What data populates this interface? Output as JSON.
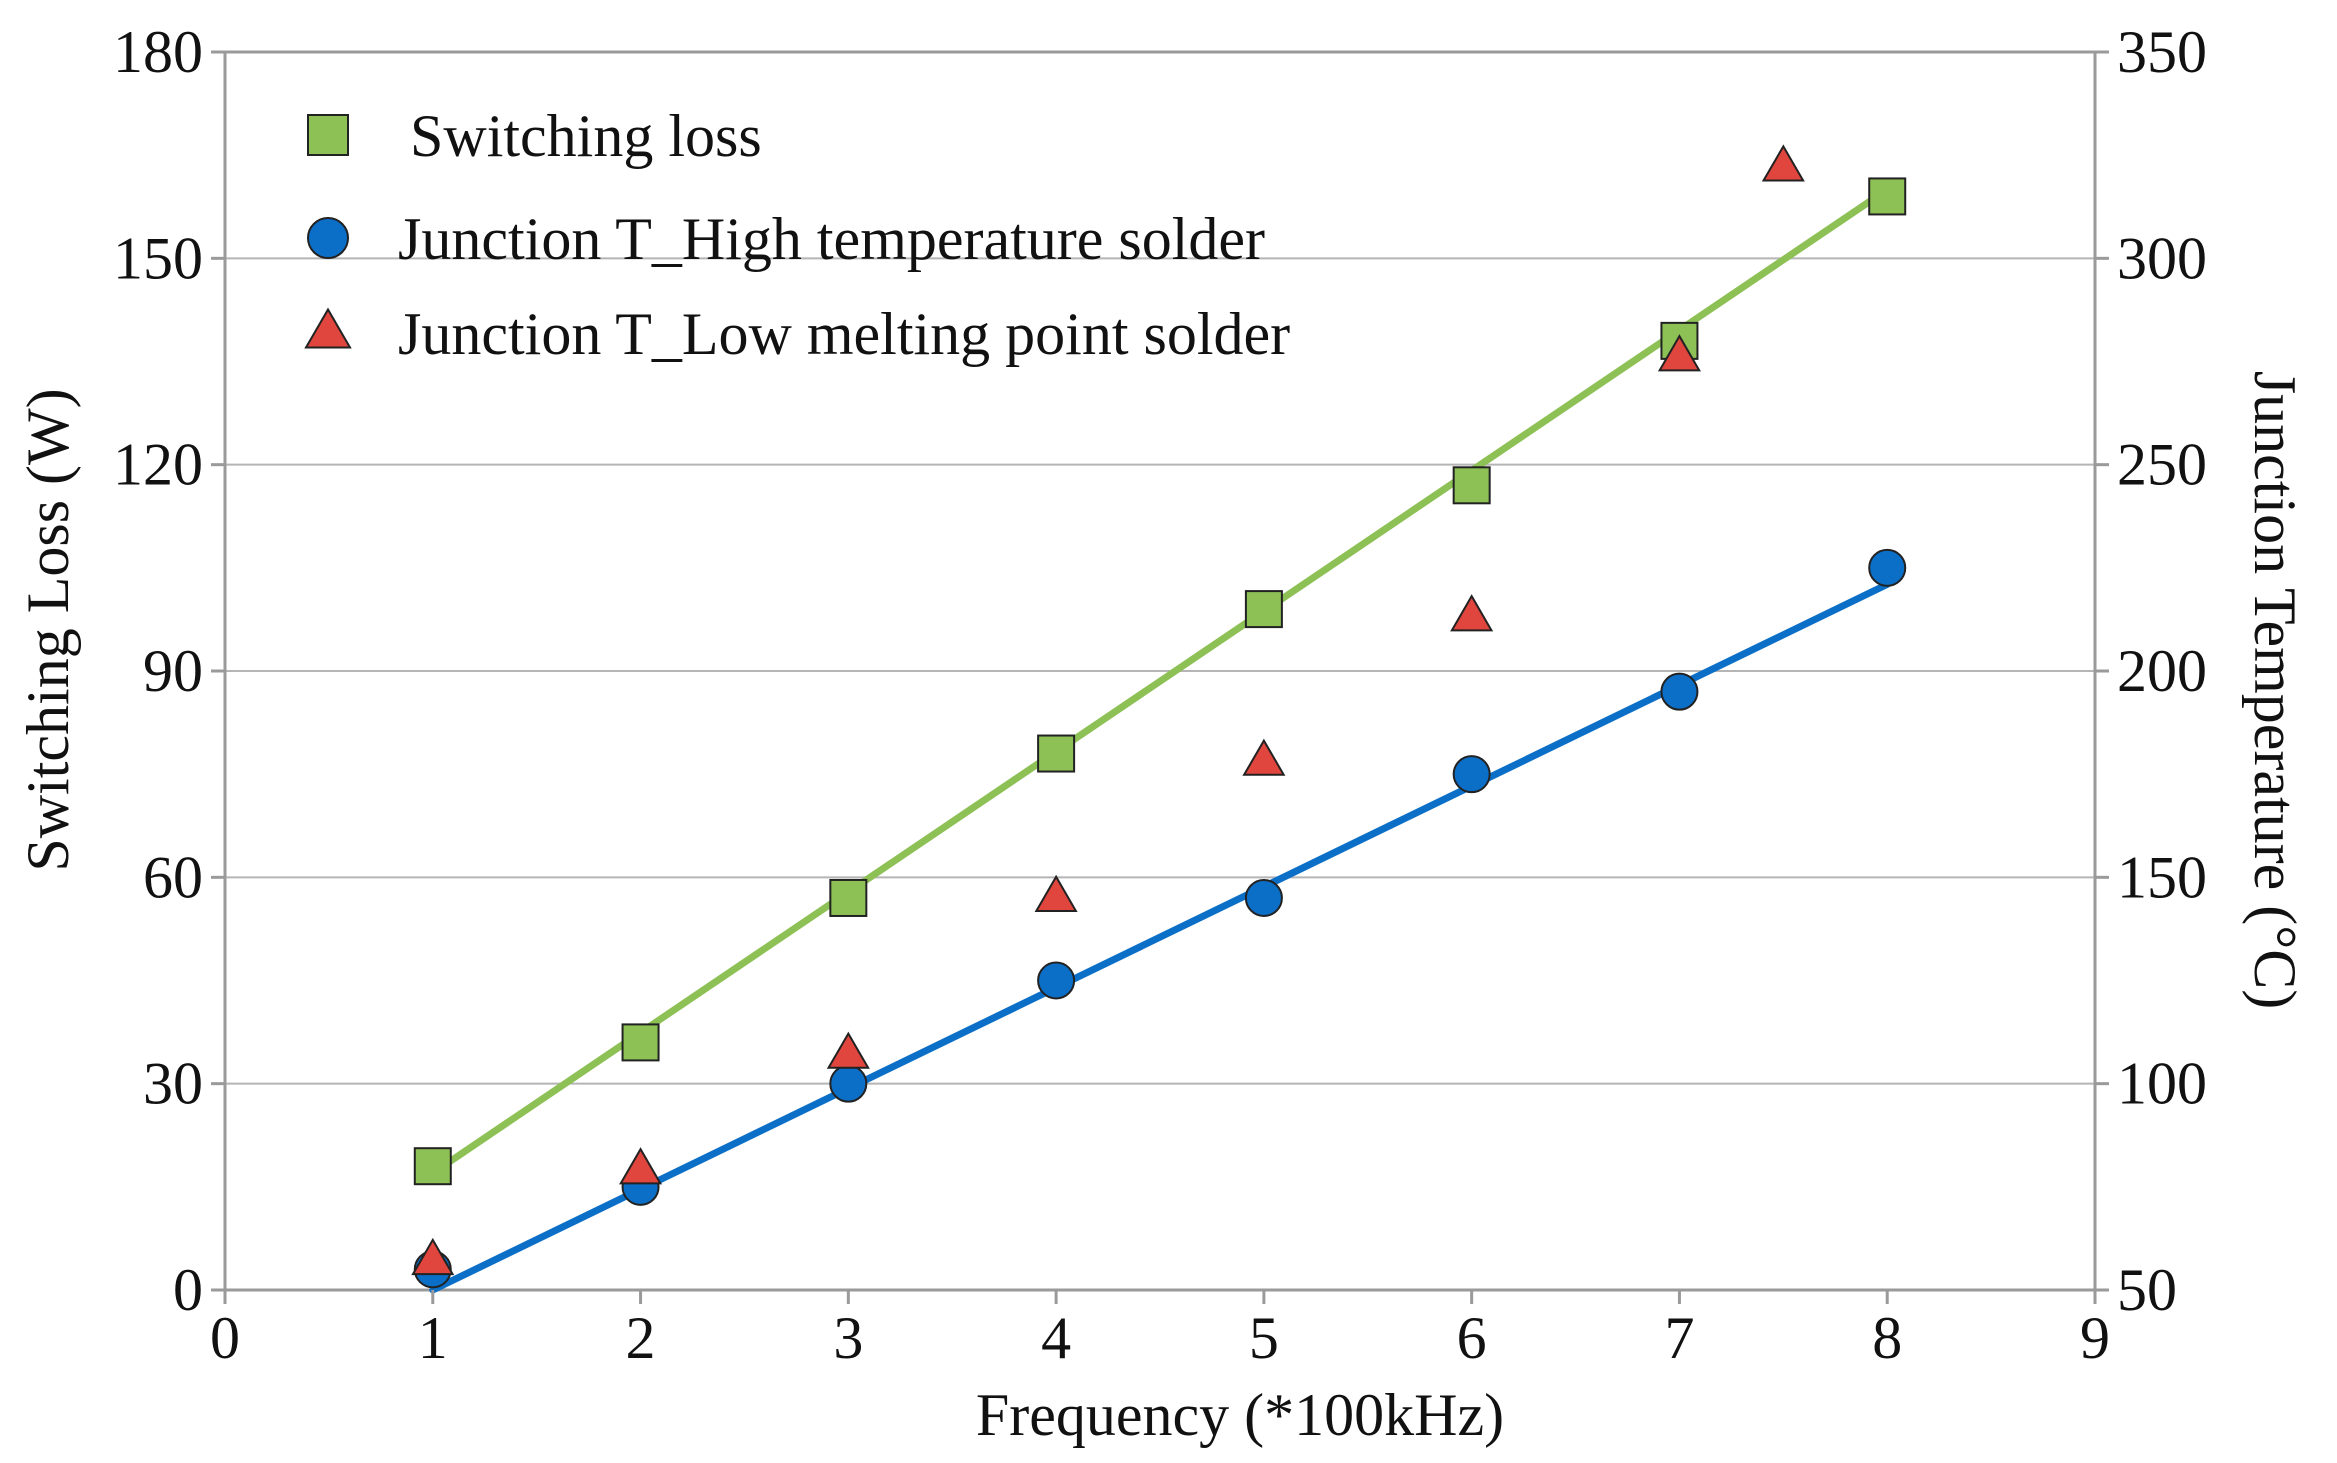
{
  "chart_data": {
    "type": "scatter",
    "x": [
      1,
      2,
      3,
      4,
      5,
      6,
      7,
      8
    ],
    "xlabel": "Frequency (*100kHz)",
    "xlim": [
      0,
      9
    ],
    "xticks": [
      "0",
      "1",
      "2",
      "3",
      "4",
      "5",
      "6",
      "7",
      "8",
      "9"
    ],
    "ylabel": "Switching Loss (W)",
    "ylim": [
      0,
      180
    ],
    "yticks": [
      "0",
      "30",
      "60",
      "90",
      "120",
      "150",
      "180"
    ],
    "y2label": "Junction Temperature (°C)",
    "y2lim": [
      50,
      350
    ],
    "y2ticks": [
      "50",
      "100",
      "150",
      "200",
      "250",
      "300",
      "350"
    ],
    "grid": true,
    "legend_position": "top-left",
    "series": [
      {
        "name": "Switching loss",
        "axis": "left",
        "marker": "square",
        "color": "#8dc155",
        "x": [
          1,
          2,
          3,
          4,
          5,
          6,
          7,
          8
        ],
        "values": [
          18,
          36,
          57,
          78,
          99,
          117,
          138,
          159
        ],
        "trendline": [
          17,
          160
        ]
      },
      {
        "name": "Junction T_High temperature solder",
        "axis": "right",
        "marker": "circle",
        "color": "#0b6fc8",
        "x": [
          1,
          2,
          3,
          4,
          5,
          6,
          7,
          8
        ],
        "values": [
          55,
          75,
          100,
          125,
          145,
          175,
          195,
          225
        ],
        "trendline": [
          50,
          221
        ]
      },
      {
        "name": "Junction T_Low melting point solder",
        "axis": "right",
        "marker": "triangle",
        "color": "#e0463d",
        "x": [
          1,
          2,
          3,
          4,
          5,
          6,
          7,
          7.5
        ],
        "values": [
          57,
          79,
          107,
          145,
          178,
          213,
          276,
          322
        ]
      }
    ]
  }
}
